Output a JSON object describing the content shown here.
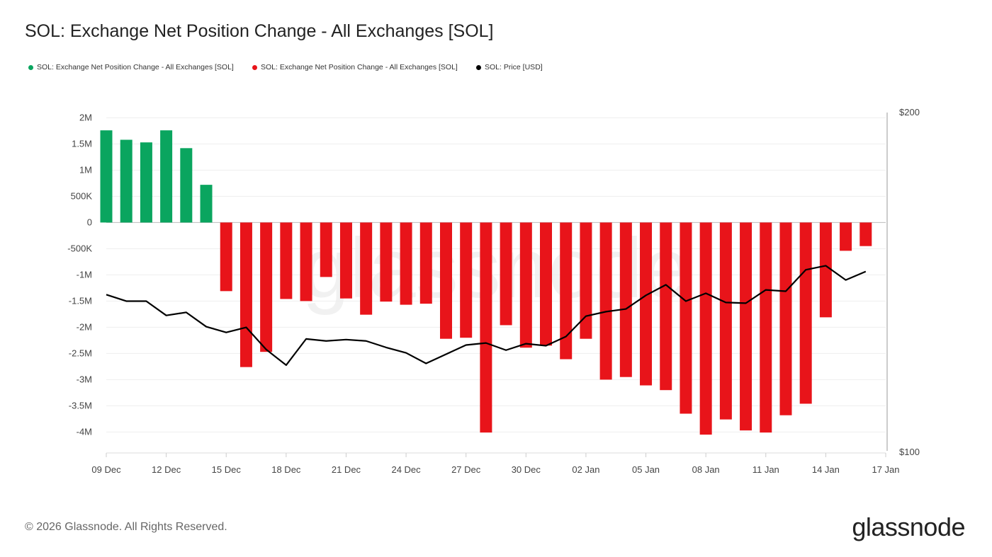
{
  "title": "SOL: Exchange Net Position Change - All Exchanges [SOL]",
  "legend": [
    {
      "label": "SOL: Exchange Net Position Change - All Exchanges [SOL]",
      "color": "#0aa55f"
    },
    {
      "label": "SOL: Exchange Net Position Change - All Exchanges [SOL]",
      "color": "#e8141a"
    },
    {
      "label": "SOL: Price [USD]",
      "color": "#000000"
    }
  ],
  "footer": {
    "copyright": "© 2026 Glassnode. All Rights Reserved.",
    "logo": "glassnode"
  },
  "watermark": "glassnode",
  "chart_data": {
    "type": "bar",
    "title": "SOL: Exchange Net Position Change - All Exchanges [SOL]",
    "x_ticks": [
      "09 Dec",
      "12 Dec",
      "15 Dec",
      "18 Dec",
      "21 Dec",
      "24 Dec",
      "27 Dec",
      "30 Dec",
      "02 Jan",
      "05 Jan",
      "08 Jan",
      "11 Jan",
      "14 Jan",
      "17 Jan"
    ],
    "y_left_ticks": [
      "2M",
      "1.5M",
      "1M",
      "500K",
      "0",
      "-500K",
      "-1M",
      "-1.5M",
      "-2M",
      "-2.5M",
      "-3M",
      "-3.5M",
      "-4M"
    ],
    "y_left_tick_values": [
      2000000,
      1500000,
      1000000,
      500000,
      0,
      -500000,
      -1000000,
      -1500000,
      -2000000,
      -2500000,
      -3000000,
      -3500000,
      -4000000
    ],
    "y_right_ticks": [
      "$200",
      "$100"
    ],
    "ylim_left": [
      -4400000,
      2100000
    ],
    "ylim_right": [
      100,
      200
    ],
    "xlim": [
      "2025-12-09",
      "2026-01-17"
    ],
    "grid": true,
    "legend_position": "top-left",
    "positive_color": "#0aa55f",
    "negative_color": "#e8141a",
    "x": [
      "2025-12-09",
      "2025-12-10",
      "2025-12-11",
      "2025-12-12",
      "2025-12-13",
      "2025-12-14",
      "2025-12-15",
      "2025-12-16",
      "2025-12-17",
      "2025-12-18",
      "2025-12-19",
      "2025-12-20",
      "2025-12-21",
      "2025-12-22",
      "2025-12-23",
      "2025-12-24",
      "2025-12-25",
      "2025-12-26",
      "2025-12-27",
      "2025-12-28",
      "2025-12-29",
      "2025-12-30",
      "2025-12-31",
      "2026-01-01",
      "2026-01-02",
      "2026-01-03",
      "2026-01-04",
      "2026-01-05",
      "2026-01-06",
      "2026-01-07",
      "2026-01-08",
      "2026-01-09",
      "2026-01-10",
      "2026-01-11",
      "2026-01-12",
      "2026-01-13",
      "2026-01-14",
      "2026-01-15",
      "2026-01-16"
    ],
    "series": [
      {
        "name": "SOL: Exchange Net Position Change - All Exchanges [SOL]",
        "type": "bar",
        "axis": "left",
        "values": [
          1760000,
          1580000,
          1530000,
          1760000,
          1420000,
          720000,
          -1310000,
          -2760000,
          -2470000,
          -1460000,
          -1500000,
          -1040000,
          -1450000,
          -1760000,
          -1510000,
          -1570000,
          -1550000,
          -2220000,
          -2200000,
          -4010000,
          -1960000,
          -2390000,
          -2350000,
          -2610000,
          -2220000,
          -3000000,
          -2950000,
          -3110000,
          -3200000,
          -3650000,
          -4050000,
          -3760000,
          -3970000,
          -4010000,
          -3680000,
          -3460000,
          -1810000,
          -540000,
          -450000
        ]
      },
      {
        "name": "SOL: Price [USD]",
        "type": "line",
        "axis": "right",
        "values": [
          146.5,
          144.6,
          144.6,
          140.4,
          141.3,
          137.1,
          135.4,
          136.9,
          130.4,
          125.8,
          133.5,
          132.9,
          133.3,
          132.9,
          131.0,
          129.4,
          126.3,
          129.0,
          131.7,
          132.3,
          130.2,
          132.1,
          131.5,
          134.2,
          140.2,
          141.5,
          142.3,
          146.3,
          149.4,
          144.6,
          146.9,
          144.2,
          144.0,
          147.9,
          147.5,
          153.8,
          155.0,
          150.8,
          153.3
        ]
      }
    ]
  }
}
